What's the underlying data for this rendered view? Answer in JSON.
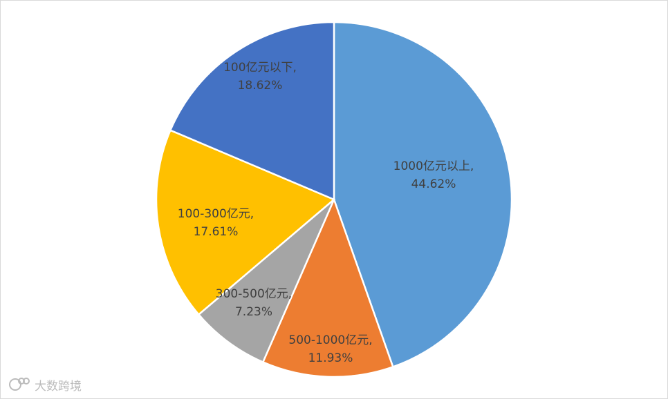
{
  "chart_data": {
    "type": "pie",
    "categories": [
      "1000亿元以上,",
      "500-1000亿元,",
      "300-500亿元,",
      "100-300亿元,",
      "100亿元以下,"
    ],
    "values": [
      44.62,
      11.93,
      7.23,
      17.61,
      18.62
    ],
    "value_labels": [
      "44.62%",
      "11.93%",
      "7.23%",
      "17.61%",
      "18.62%"
    ],
    "colors": [
      "#5b9bd5",
      "#ed7d31",
      "#a5a5a5",
      "#ffc000",
      "#4472c4"
    ]
  },
  "watermark": "大数跨境"
}
